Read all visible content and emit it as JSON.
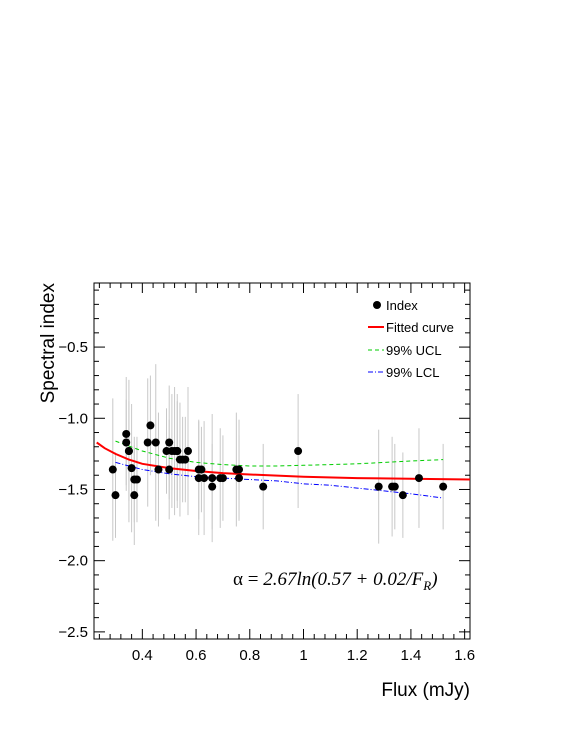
{
  "chart_data": {
    "type": "scatter",
    "xlabel": "Flux (mJy)",
    "ylabel": "Spectral index",
    "xlim": [
      0.22,
      1.62
    ],
    "ylim": [
      -2.55,
      -0.05
    ],
    "x_ticks": [
      0.4,
      0.6,
      0.8,
      1.0,
      1.2,
      1.4,
      1.6
    ],
    "x_tick_labels": [
      "0.4",
      "0.6",
      "0.8",
      "1",
      "1.2",
      "1.4",
      "1.6"
    ],
    "y_ticks": [
      -0.5,
      -1.0,
      -1.5,
      -2.0,
      -2.5
    ],
    "y_tick_labels": [
      "−0.5",
      "−1.0",
      "−1.5",
      "−2.0",
      "−2.5"
    ],
    "grid": false,
    "legend": {
      "placement": "top-right",
      "entries": [
        {
          "label": "Index",
          "style": "marker",
          "color": "#000000"
        },
        {
          "label": "Fitted curve",
          "style": "solid",
          "color": "#ff0000"
        },
        {
          "label": "99% UCL",
          "style": "dashed",
          "color": "#00cc00"
        },
        {
          "label": "99% LCL",
          "style": "dashdot",
          "color": "#0000ff"
        }
      ]
    },
    "annotation": {
      "alpha": "α",
      "equals": " = ",
      "body": "2.67ln(0.57 + 0.02/F",
      "sub": "R",
      "close": ")"
    },
    "series": [
      {
        "name": "Index",
        "color": "#000000",
        "errorbar_color": "#c8c8c8",
        "x": [
          0.29,
          0.3,
          0.34,
          0.34,
          0.35,
          0.35,
          0.36,
          0.37,
          0.37,
          0.38,
          0.42,
          0.43,
          0.45,
          0.46,
          0.49,
          0.5,
          0.5,
          0.51,
          0.52,
          0.53,
          0.53,
          0.54,
          0.55,
          0.56,
          0.57,
          0.61,
          0.61,
          0.62,
          0.63,
          0.66,
          0.66,
          0.69,
          0.7,
          0.75,
          0.76,
          0.76,
          0.85,
          0.98,
          1.28,
          1.33,
          1.34,
          1.37,
          1.43,
          1.52
        ],
        "y": [
          -1.36,
          -1.54,
          -1.11,
          -1.17,
          -1.23,
          -1.23,
          -1.35,
          -1.54,
          -1.43,
          -1.43,
          -1.17,
          -1.05,
          -1.17,
          -1.36,
          -1.23,
          -1.17,
          -1.36,
          -1.23,
          -1.23,
          -1.23,
          -1.23,
          -1.29,
          -1.29,
          -1.29,
          -1.23,
          -1.42,
          -1.36,
          -1.36,
          -1.42,
          -1.42,
          -1.48,
          -1.42,
          -1.42,
          -1.36,
          -1.36,
          -1.42,
          -1.48,
          -1.23,
          -1.48,
          -1.48,
          -1.48,
          -1.54,
          -1.42,
          -1.48
        ],
        "yerr": [
          0.5,
          0.3,
          0.4,
          0.3,
          0.35,
          0.5,
          0.45,
          0.35,
          0.3,
          0.3,
          0.45,
          0.35,
          0.55,
          0.4,
          0.3,
          0.4,
          0.35,
          0.4,
          0.45,
          0.4,
          0.35,
          0.4,
          0.3,
          0.3,
          0.45,
          0.4,
          0.35,
          0.3,
          0.4,
          0.45,
          0.3,
          0.35,
          0.3,
          0.4,
          0.35,
          0.3,
          0.3,
          0.4,
          0.4,
          0.35,
          0.3,
          0.3,
          0.35,
          0.3
        ]
      },
      {
        "name": "Fitted curve",
        "color": "#ff0000",
        "x": [
          0.23,
          0.26,
          0.3,
          0.35,
          0.4,
          0.5,
          0.6,
          0.7,
          0.8,
          1.0,
          1.2,
          1.4,
          1.62
        ],
        "y": [
          -1.17,
          -1.21,
          -1.25,
          -1.29,
          -1.32,
          -1.35,
          -1.37,
          -1.385,
          -1.395,
          -1.41,
          -1.42,
          -1.425,
          -1.43
        ]
      },
      {
        "name": "99% UCL",
        "color": "#00cc00",
        "x": [
          0.3,
          0.4,
          0.5,
          0.6,
          0.7,
          0.8,
          0.9,
          1.0,
          1.1,
          1.2,
          1.3,
          1.4,
          1.52
        ],
        "y": [
          -1.16,
          -1.23,
          -1.28,
          -1.31,
          -1.325,
          -1.335,
          -1.335,
          -1.33,
          -1.325,
          -1.32,
          -1.31,
          -1.3,
          -1.29
        ]
      },
      {
        "name": "99% LCL",
        "color": "#0000ff",
        "x": [
          0.3,
          0.4,
          0.5,
          0.6,
          0.7,
          0.8,
          0.9,
          1.0,
          1.1,
          1.2,
          1.3,
          1.4,
          1.52
        ],
        "y": [
          -1.31,
          -1.36,
          -1.39,
          -1.41,
          -1.42,
          -1.43,
          -1.44,
          -1.46,
          -1.47,
          -1.49,
          -1.51,
          -1.53,
          -1.56
        ]
      }
    ]
  }
}
